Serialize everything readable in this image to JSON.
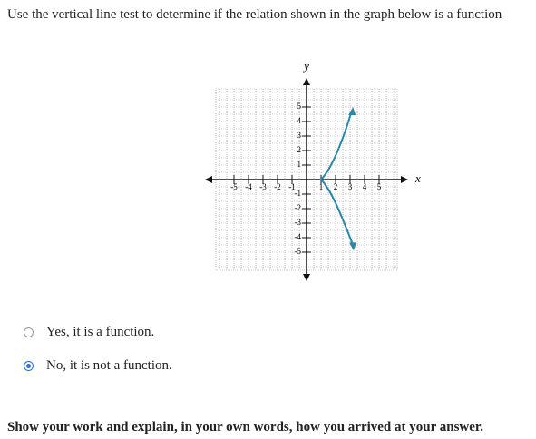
{
  "question": "Use the vertical line test to determine if the relation shown in the graph below is a function",
  "graph": {
    "x_label": "x",
    "y_label": "y",
    "xticks": [
      -5,
      -4,
      -3,
      -2,
      -1,
      1,
      2,
      3,
      4,
      5
    ],
    "yticks": [
      5,
      4,
      3,
      2,
      1,
      -1,
      -2,
      -3,
      -4,
      -5
    ]
  },
  "options": [
    {
      "label": "Yes, it is a function.",
      "selected": false
    },
    {
      "label": "No, it is not a function.",
      "selected": true
    }
  ],
  "prompt": "Show your work and explain, in your own words, how you arrived at your answer."
}
